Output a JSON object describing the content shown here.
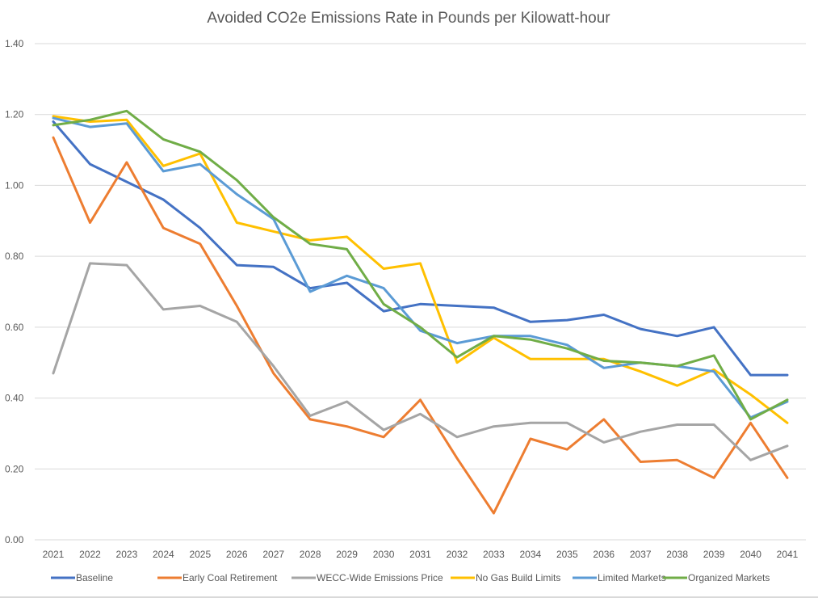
{
  "chart_data": {
    "type": "line",
    "title": "Avoided CO2e Emissions Rate in Pounds per Kilowatt-hour",
    "xlabel": "",
    "ylabel": "",
    "ylim": [
      0,
      1.4
    ],
    "y_ticks": [
      "0.00",
      "0.20",
      "0.40",
      "0.60",
      "0.80",
      "1.00",
      "1.20",
      "1.40"
    ],
    "y_tick_values": [
      0,
      0.2,
      0.4,
      0.6,
      0.8,
      1.0,
      1.2,
      1.4
    ],
    "grid": true,
    "legend_position": "bottom",
    "categories": [
      "2021",
      "2022",
      "2023",
      "2024",
      "2025",
      "2026",
      "2027",
      "2028",
      "2029",
      "2030",
      "2031",
      "2032",
      "2033",
      "2034",
      "2035",
      "2036",
      "2037",
      "2038",
      "2039",
      "2040",
      "2041"
    ],
    "series": [
      {
        "name": "Baseline",
        "color": "#4472c4",
        "values": [
          1.18,
          1.06,
          1.01,
          0.96,
          0.88,
          0.775,
          0.77,
          0.71,
          0.725,
          0.645,
          0.665,
          0.66,
          0.655,
          0.615,
          0.62,
          0.635,
          0.595,
          0.575,
          0.6,
          0.465,
          0.465
        ]
      },
      {
        "name": "Early Coal Retirement",
        "color": "#ed7d31",
        "values": [
          1.135,
          0.895,
          1.065,
          0.88,
          0.835,
          0.66,
          0.47,
          0.34,
          0.32,
          0.29,
          0.395,
          0.23,
          0.075,
          0.285,
          0.255,
          0.34,
          0.22,
          0.225,
          0.175,
          0.33,
          0.175
        ]
      },
      {
        "name": "WECC-Wide Emissions Price",
        "color": "#a5a5a5",
        "values": [
          0.47,
          0.78,
          0.775,
          0.65,
          0.66,
          0.615,
          0.49,
          0.35,
          0.39,
          0.31,
          0.355,
          0.29,
          0.32,
          0.33,
          0.33,
          0.275,
          0.305,
          0.325,
          0.325,
          0.225,
          0.265
        ]
      },
      {
        "name": "No Gas Build Limits",
        "color": "#ffc000",
        "values": [
          1.195,
          1.18,
          1.185,
          1.055,
          1.09,
          0.895,
          0.87,
          0.845,
          0.855,
          0.765,
          0.78,
          0.5,
          0.57,
          0.51,
          0.51,
          0.51,
          0.475,
          0.435,
          0.48,
          0.41,
          0.33
        ]
      },
      {
        "name": "Limited Markets",
        "color": "#5b9bd5",
        "values": [
          1.19,
          1.165,
          1.175,
          1.04,
          1.06,
          0.975,
          0.905,
          0.7,
          0.745,
          0.71,
          0.59,
          0.555,
          0.575,
          0.575,
          0.55,
          0.485,
          0.5,
          0.49,
          0.475,
          0.345,
          0.39
        ]
      },
      {
        "name": "Organized Markets",
        "color": "#70ad47",
        "values": [
          1.17,
          1.185,
          1.21,
          1.13,
          1.095,
          1.015,
          0.91,
          0.835,
          0.82,
          0.665,
          0.6,
          0.515,
          0.575,
          0.565,
          0.54,
          0.505,
          0.5,
          0.49,
          0.52,
          0.34,
          0.395
        ]
      }
    ]
  }
}
